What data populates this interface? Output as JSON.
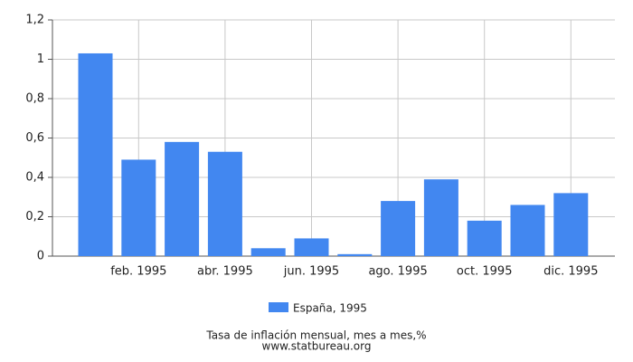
{
  "chart_data": {
    "type": "bar",
    "title": "Tasa de inflación mensual, mes a mes,%",
    "source": "www.statbureau.org",
    "categories": [
      null,
      "feb. 1995",
      null,
      "abr. 1995",
      null,
      "jun. 1995",
      null,
      "ago. 1995",
      null,
      "oct. 1995",
      null,
      "dic. 1995"
    ],
    "series": [
      {
        "name": "España, 1995",
        "color": "#4287f0",
        "values": [
          1.03,
          0.49,
          0.58,
          0.53,
          0.04,
          0.09,
          0.01,
          0.28,
          0.39,
          0.18,
          0.26,
          0.32
        ]
      }
    ],
    "ylim": [
      0,
      1.2
    ],
    "yticks": [
      0,
      {
        "value": 0.2,
        "label": "0,2"
      },
      {
        "value": 0.4,
        "label": "0,4"
      },
      {
        "value": 0.6,
        "label": "0,6"
      },
      {
        "value": 0.8,
        "label": "0,8"
      },
      1,
      {
        "value": 1.2,
        "label": "1,2"
      }
    ],
    "grid": true
  }
}
